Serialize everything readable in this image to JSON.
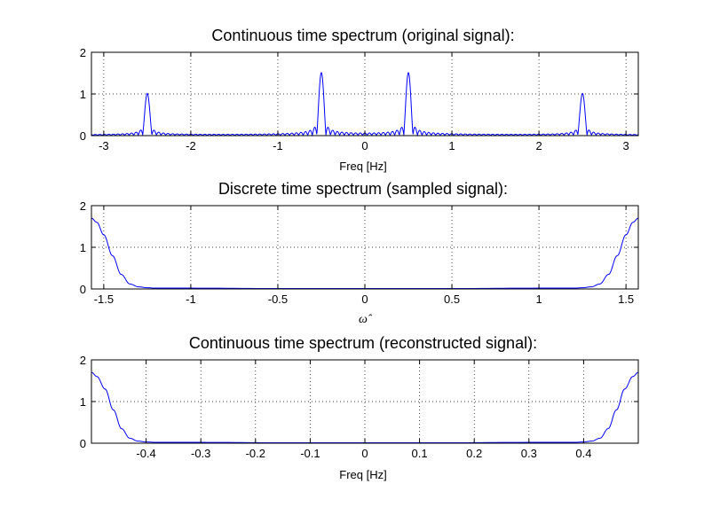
{
  "chart_data": [
    {
      "type": "line",
      "title": "Continuous time spectrum (original signal):",
      "xlabel": "Freq [Hz]",
      "ylabel": "",
      "xlim": [
        -3.1416,
        3.1416
      ],
      "ylim": [
        0,
        2
      ],
      "xticks": [
        -3,
        -2,
        -1,
        0,
        1,
        2,
        3
      ],
      "xtick_labels": [
        "-3",
        "-2",
        "-1",
        "0",
        "1",
        "2",
        "3"
      ],
      "yticks": [
        0,
        1,
        2
      ],
      "ytick_labels": [
        "0",
        "1",
        "2"
      ],
      "grid": true,
      "series": [
        {
          "color": "#0000ff",
          "peaks": [
            {
              "x": -2.5,
              "height": 1.0
            },
            {
              "x": -0.5,
              "height": 1.5
            },
            {
              "x": 0.5,
              "height": 1.5
            },
            {
              "x": 2.5,
              "height": 1.0
            }
          ]
        }
      ]
    },
    {
      "type": "line",
      "title": "Discrete time spectrum (sampled signal):",
      "xlabel": "ω̂",
      "ylabel": "",
      "xlim": [
        -1.5708,
        1.5708
      ],
      "ylim": [
        0,
        2
      ],
      "xticks": [
        -1.5,
        -1,
        -0.5,
        0,
        0.5,
        1,
        1.5
      ],
      "xtick_labels": [
        "-1.5",
        "-1",
        "-0.5",
        "0",
        "0.5",
        "1",
        "1.5"
      ],
      "yticks": [
        0,
        1,
        2
      ],
      "ytick_labels": [
        "0",
        "1",
        "2"
      ],
      "grid": true,
      "series": [
        {
          "color": "#0000ff",
          "x": [
            -1.5708,
            -1.54,
            -1.5,
            -1.45,
            -1.4,
            -1.35,
            -1.3,
            -1.25,
            -1.2,
            -1.0,
            -0.5,
            0,
            0.5,
            1.0,
            1.2,
            1.25,
            1.3,
            1.35,
            1.4,
            1.45,
            1.5,
            1.54,
            1.5708
          ],
          "y": [
            1.7,
            1.6,
            1.3,
            0.8,
            0.35,
            0.12,
            0.05,
            0.03,
            0.02,
            0.02,
            0.01,
            0.01,
            0.01,
            0.02,
            0.02,
            0.03,
            0.05,
            0.12,
            0.35,
            0.8,
            1.3,
            1.6,
            1.7
          ]
        }
      ]
    },
    {
      "type": "line",
      "title": "Continuous time spectrum (reconstructed signal):",
      "xlabel": "Freq [Hz]",
      "ylabel": "",
      "xlim": [
        -0.5,
        0.5
      ],
      "ylim": [
        0,
        2
      ],
      "xticks": [
        -0.4,
        -0.3,
        -0.2,
        -0.1,
        0,
        0.1,
        0.2,
        0.3,
        0.4
      ],
      "xtick_labels": [
        "-0.4",
        "-0.3",
        "-0.2",
        "-0.1",
        "0",
        "0.1",
        "0.2",
        "0.3",
        "0.4"
      ],
      "yticks": [
        0,
        1,
        2
      ],
      "ytick_labels": [
        "0",
        "1",
        "2"
      ],
      "grid": true,
      "series": [
        {
          "color": "#0000ff",
          "x": [
            -0.5,
            -0.49,
            -0.475,
            -0.46,
            -0.445,
            -0.43,
            -0.415,
            -0.4,
            -0.38,
            -0.3,
            -0.15,
            0,
            0.15,
            0.3,
            0.38,
            0.4,
            0.415,
            0.43,
            0.445,
            0.46,
            0.475,
            0.49,
            0.5
          ],
          "y": [
            1.7,
            1.6,
            1.3,
            0.8,
            0.35,
            0.12,
            0.05,
            0.03,
            0.02,
            0.02,
            0.01,
            0.01,
            0.01,
            0.02,
            0.02,
            0.03,
            0.05,
            0.12,
            0.35,
            0.8,
            1.3,
            1.6,
            1.7
          ]
        }
      ]
    }
  ]
}
